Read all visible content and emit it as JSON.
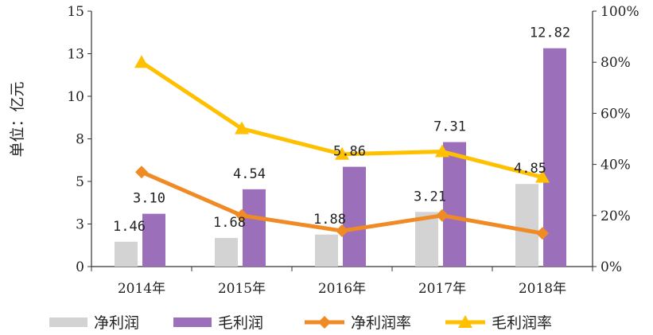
{
  "chart_data": {
    "type": "bar",
    "categories": [
      "2014年",
      "2015年",
      "2016年",
      "2017年",
      "2018年"
    ],
    "ylabel": "单位：亿元",
    "y_ticks": [
      "0",
      "3",
      "5",
      "8",
      "10",
      "13",
      "15"
    ],
    "y2_ticks": [
      "0%",
      "20%",
      "40%",
      "60%",
      "80%",
      "100%"
    ],
    "ylim": [
      0,
      15
    ],
    "y2lim": [
      0,
      100
    ],
    "series": [
      {
        "name": "净利润",
        "kind": "bar",
        "axis": "left",
        "color": "#d3d3d3",
        "values": [
          1.46,
          1.68,
          1.88,
          3.21,
          4.85
        ],
        "labels": [
          "1.46",
          "1.68",
          "1.88",
          "3.21",
          "4.85"
        ]
      },
      {
        "name": "毛利润",
        "kind": "bar",
        "axis": "left",
        "color": "#9b6fba",
        "values": [
          3.1,
          4.54,
          5.86,
          7.31,
          12.82
        ],
        "labels": [
          "3.10",
          "4.54",
          "5.86",
          "7.31",
          "12.82"
        ]
      },
      {
        "name": "净利润率",
        "kind": "line",
        "axis": "right",
        "color": "#f08a24",
        "marker": "diamond",
        "values": [
          37,
          20,
          14,
          20,
          13
        ]
      },
      {
        "name": "毛利润率",
        "kind": "line",
        "axis": "right",
        "color": "#ffc000",
        "marker": "triangle",
        "values": [
          80,
          54,
          44,
          45,
          35
        ]
      }
    ],
    "grid": false,
    "legend_position": "bottom"
  }
}
